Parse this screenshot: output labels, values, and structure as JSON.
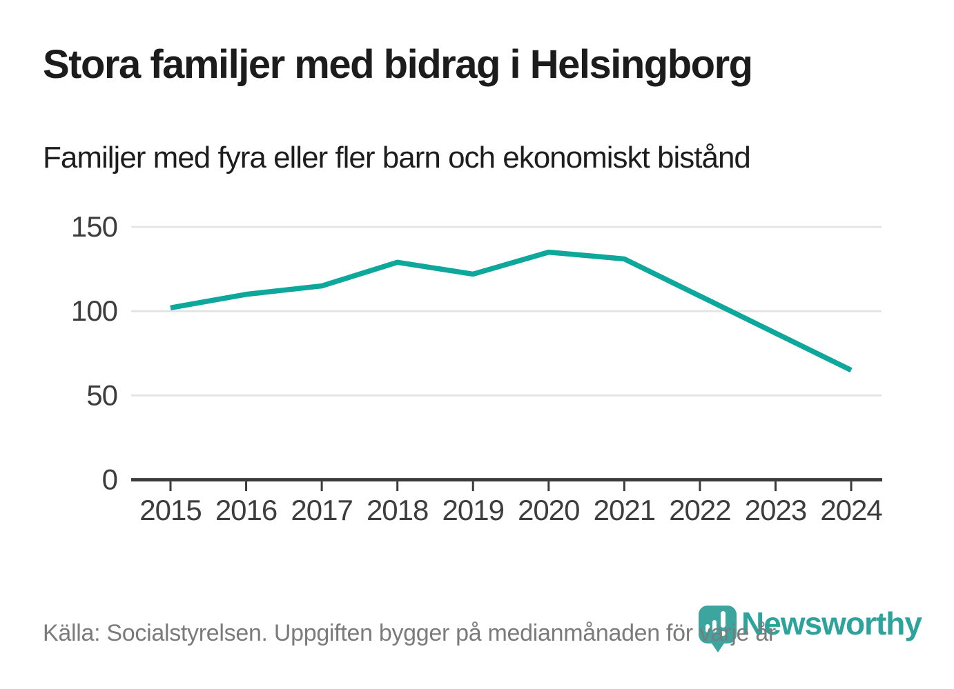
{
  "header": {
    "title": "Stora familjer med bidrag i Helsingborg",
    "subtitle": "Familjer med fyra eller fler barn och ekonomiskt bistånd"
  },
  "chart_data": {
    "type": "line",
    "title": "Stora familjer med bidrag i Helsingborg",
    "subtitle": "Familjer med fyra eller fler barn och ekonomiskt bistånd",
    "x": [
      "2015",
      "2016",
      "2017",
      "2018",
      "2019",
      "2020",
      "2021",
      "2022",
      "2023",
      "2024"
    ],
    "series": [
      {
        "name": "Familjer med fyra eller fler barn och ekonomiskt bistånd",
        "values": [
          102,
          110,
          115,
          129,
          122,
          135,
          131,
          109,
          87,
          65
        ]
      }
    ],
    "ylim": [
      0,
      150
    ],
    "yticks": [
      0,
      50,
      100,
      150
    ],
    "grid": "horizontal",
    "legend_position": "none",
    "line_color": "#0ea79c"
  },
  "footer": {
    "source": "Källa: Socialstyrelsen. Uppgiften bygger på medianmånaden för varje år",
    "logo": {
      "text": "Newsworthy",
      "icon": "bar-chart-speech-bubble"
    }
  },
  "colors": {
    "accent_teal": "#0ea79c",
    "logo_badge_teal": "#3ca59e",
    "logo_text_teal": "#2ea39c",
    "title_text": "#1c1c1c",
    "axis_text": "#3d3d3d",
    "muted_text": "#7b7b7b",
    "gridline": "#e2e2e2",
    "axis_line": "#3b3b3b"
  }
}
